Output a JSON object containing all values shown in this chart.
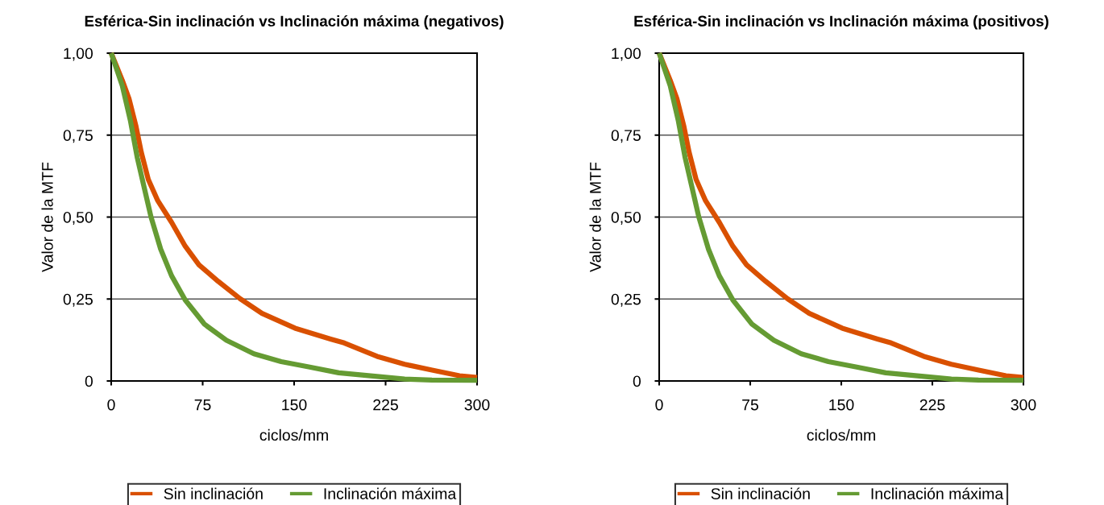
{
  "chart_data": [
    {
      "type": "line",
      "title": "Esférica-Sin inclinación vs Inclinación máxima (negativos)",
      "xlabel": "ciclos/mm",
      "ylabel": "Valor de la MTF",
      "xlim": [
        0,
        300
      ],
      "xticks": [
        0,
        75,
        150,
        225,
        300
      ],
      "ylim": [
        0,
        1
      ],
      "yticks": [
        {
          "value": 0,
          "label": "0"
        },
        {
          "value": 0.25,
          "label": "0,25"
        },
        {
          "value": 0.5,
          "label": "0,50"
        },
        {
          "value": 0.75,
          "label": "0,75"
        },
        {
          "value": 1,
          "label": "1,00"
        }
      ],
      "grid": "y",
      "legend": "bottom",
      "line_style": "solid",
      "marker": "none",
      "series": [
        {
          "name": "Sin inclinación",
          "color": "#d95000",
          "x": [
            0,
            9,
            14.6,
            20.2,
            24.7,
            30.4,
            38.2,
            49.5,
            60.7,
            72,
            87.7,
            105.7,
            123.7,
            150.7,
            179.9,
            191.1,
            218,
            240.6,
            263.1,
            285.6,
            300
          ],
          "values": [
            1.0,
            0.918,
            0.861,
            0.779,
            0.697,
            0.615,
            0.55,
            0.484,
            0.411,
            0.354,
            0.304,
            0.251,
            0.206,
            0.161,
            0.128,
            0.116,
            0.075,
            0.051,
            0.033,
            0.016,
            0.011
          ]
        },
        {
          "name": "Inclinación máxima",
          "color": "#659b33",
          "x": [
            0,
            9,
            15.7,
            21.4,
            27,
            32.6,
            40.5,
            49.5,
            60.7,
            76.5,
            94.5,
            117,
            139.4,
            161.9,
            186.6,
            218,
            240.6,
            263,
            300
          ],
          "values": [
            1.0,
            0.902,
            0.795,
            0.681,
            0.591,
            0.501,
            0.403,
            0.321,
            0.247,
            0.173,
            0.124,
            0.083,
            0.059,
            0.043,
            0.025,
            0.014,
            0.006,
            0.003,
            0.002
          ]
        }
      ]
    },
    {
      "type": "line",
      "title": "Esférica-Sin inclinación vs Inclinación máxima (positivos)",
      "xlabel": "ciclos/mm",
      "ylabel": "Valor de la MTF",
      "xlim": [
        0,
        300
      ],
      "xticks": [
        0,
        75,
        150,
        225,
        300
      ],
      "ylim": [
        0,
        1
      ],
      "yticks": [
        {
          "value": 0,
          "label": "0"
        },
        {
          "value": 0.25,
          "label": "0,25"
        },
        {
          "value": 0.5,
          "label": "0,50"
        },
        {
          "value": 0.75,
          "label": "0,75"
        },
        {
          "value": 1,
          "label": "1,00"
        }
      ],
      "grid": "y",
      "legend": "bottom",
      "line_style": "solid",
      "marker": "none",
      "series": [
        {
          "name": "Sin inclinación",
          "color": "#d95000",
          "x": [
            0,
            9,
            14.6,
            20.2,
            24.7,
            30.4,
            38.2,
            49.5,
            60.7,
            72,
            87.7,
            105.7,
            123.7,
            150.7,
            179.9,
            191.1,
            218,
            240.6,
            263.1,
            285.6,
            300
          ],
          "values": [
            1.0,
            0.918,
            0.861,
            0.779,
            0.697,
            0.615,
            0.55,
            0.484,
            0.411,
            0.354,
            0.304,
            0.251,
            0.206,
            0.161,
            0.128,
            0.116,
            0.075,
            0.051,
            0.033,
            0.016,
            0.011
          ]
        },
        {
          "name": "Inclinación máxima",
          "color": "#659b33",
          "x": [
            0,
            9,
            15.7,
            21.4,
            27,
            32.6,
            40.5,
            49.5,
            60.7,
            76.5,
            94.5,
            117,
            139.4,
            161.9,
            186.6,
            218,
            240.6,
            263,
            300
          ],
          "values": [
            1.0,
            0.902,
            0.795,
            0.681,
            0.591,
            0.501,
            0.403,
            0.321,
            0.247,
            0.173,
            0.124,
            0.083,
            0.059,
            0.043,
            0.025,
            0.014,
            0.006,
            0.003,
            0.002
          ]
        }
      ]
    }
  ]
}
